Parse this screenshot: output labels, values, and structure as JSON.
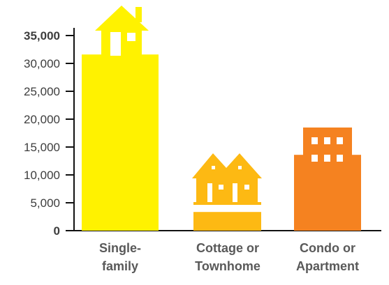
{
  "chart_data": {
    "type": "bar",
    "categories": [
      [
        "Single-",
        "family"
      ],
      [
        "Cottage or",
        "Townhome"
      ],
      [
        "Condo or",
        "Apartment"
      ]
    ],
    "values": [
      31600,
      3350,
      13600
    ],
    "ylim": [
      0,
      38000
    ],
    "yticks": [
      {
        "value": 0,
        "label": "0",
        "bold": true
      },
      {
        "value": 5000,
        "label": "5,000",
        "bold": false
      },
      {
        "value": 10000,
        "label": "10,000",
        "bold": false
      },
      {
        "value": 15000,
        "label": "15,000",
        "bold": false
      },
      {
        "value": 20000,
        "label": "20,000",
        "bold": false
      },
      {
        "value": 25000,
        "label": "25,000",
        "bold": false
      },
      {
        "value": 30000,
        "label": "30,000",
        "bold": false
      },
      {
        "value": 35000,
        "label": "35,000",
        "bold": true
      }
    ],
    "colors": [
      "#fff200",
      "#fdb913",
      "#f58220"
    ],
    "icons": [
      "single-family-house-icon",
      "cottage-townhome-icon",
      "apartment-building-icon"
    ],
    "xlabel": "",
    "ylabel": "",
    "title": "",
    "grid": false
  }
}
